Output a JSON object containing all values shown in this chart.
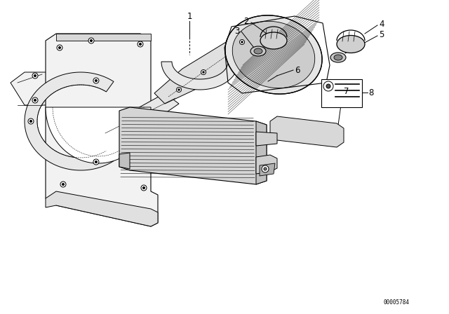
{
  "bg_color": "#ffffff",
  "line_color": "#000000",
  "watermark": "00005784",
  "fig_width": 6.4,
  "fig_height": 4.48,
  "dpi": 100
}
